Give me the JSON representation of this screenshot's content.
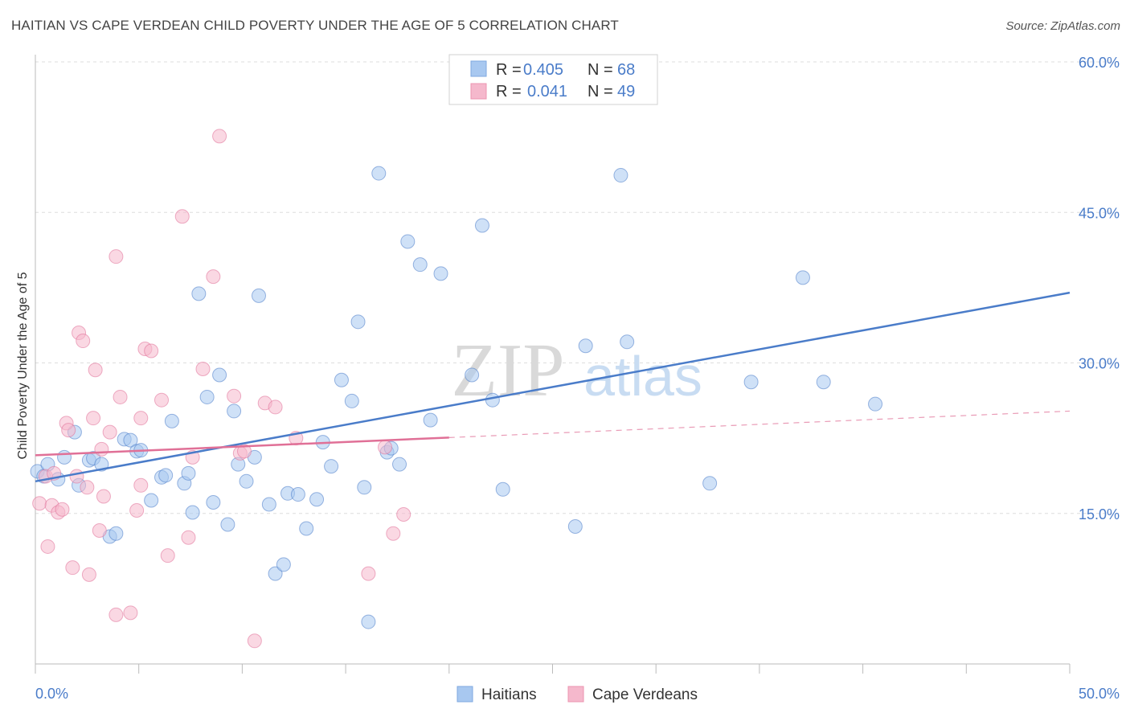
{
  "title": "HAITIAN VS CAPE VERDEAN CHILD POVERTY UNDER THE AGE OF 5 CORRELATION CHART",
  "source": "Source: ZipAtlas.com",
  "watermark": {
    "zip": "ZIP",
    "atlas": "atlas"
  },
  "legend": {
    "rows": [
      {
        "r_label": "R = ",
        "r_value": "0.405",
        "n_label": "N = ",
        "n_value": "68",
        "color": "#a8c8f0"
      },
      {
        "r_label": "R = ",
        "r_value": "0.041",
        "n_label": "N = ",
        "n_value": "49",
        "color": "#f5b8cc"
      }
    ]
  },
  "bottom_legend": [
    {
      "label": "Haitians",
      "color": "#a8c8f0"
    },
    {
      "label": "Cape Verdeans",
      "color": "#f5b8cc"
    }
  ],
  "chart_data": {
    "type": "scatter",
    "title": "HAITIAN VS CAPE VERDEAN CHILD POVERTY UNDER THE AGE OF 5 CORRELATION CHART",
    "xlabel": "",
    "ylabel": "Child Poverty Under the Age of 5",
    "xlim": [
      0,
      50
    ],
    "ylim": [
      0,
      60
    ],
    "x_tick_labels": [
      {
        "value": 0,
        "label": "0.0%"
      },
      {
        "value": 50,
        "label": "50.0%"
      }
    ],
    "y_tick_labels": [
      {
        "value": 15,
        "label": "15.0%"
      },
      {
        "value": 30,
        "label": "30.0%"
      },
      {
        "value": 45,
        "label": "45.0%"
      },
      {
        "value": 60,
        "label": "60.0%"
      }
    ],
    "grid": true,
    "legend_position": "top-center",
    "series": [
      {
        "name": "Haitians",
        "color": "#4a7cc9",
        "fill": "#a8c8f0",
        "trend": {
          "x": [
            0,
            50
          ],
          "y": [
            18.2,
            37.0
          ],
          "style": "solid"
        },
        "points": [
          [
            0.1,
            19.2
          ],
          [
            0.4,
            18.7
          ],
          [
            0.6,
            19.9
          ],
          [
            1.1,
            18.4
          ],
          [
            1.4,
            20.6
          ],
          [
            1.9,
            23.1
          ],
          [
            2.1,
            17.8
          ],
          [
            2.6,
            20.3
          ],
          [
            2.8,
            20.5
          ],
          [
            3.2,
            19.9
          ],
          [
            3.6,
            12.7
          ],
          [
            3.9,
            13.0
          ],
          [
            4.3,
            22.4
          ],
          [
            4.6,
            22.3
          ],
          [
            4.9,
            21.2
          ],
          [
            5.1,
            21.3
          ],
          [
            5.6,
            16.3
          ],
          [
            6.1,
            18.6
          ],
          [
            6.3,
            18.8
          ],
          [
            6.6,
            24.2
          ],
          [
            7.2,
            18.0
          ],
          [
            7.4,
            19.0
          ],
          [
            7.6,
            15.1
          ],
          [
            7.9,
            36.9
          ],
          [
            8.3,
            26.6
          ],
          [
            8.6,
            16.1
          ],
          [
            8.9,
            28.8
          ],
          [
            9.3,
            13.9
          ],
          [
            9.6,
            25.2
          ],
          [
            9.8,
            19.9
          ],
          [
            10.2,
            18.2
          ],
          [
            10.6,
            20.6
          ],
          [
            10.8,
            36.7
          ],
          [
            11.3,
            15.9
          ],
          [
            11.6,
            9.0
          ],
          [
            12.0,
            9.9
          ],
          [
            12.2,
            17.0
          ],
          [
            12.7,
            16.9
          ],
          [
            13.1,
            13.5
          ],
          [
            13.6,
            16.4
          ],
          [
            13.9,
            22.1
          ],
          [
            14.3,
            19.7
          ],
          [
            14.8,
            28.3
          ],
          [
            15.3,
            26.2
          ],
          [
            15.6,
            34.1
          ],
          [
            15.9,
            17.6
          ],
          [
            16.1,
            4.2
          ],
          [
            16.6,
            48.9
          ],
          [
            17.0,
            21.1
          ],
          [
            17.2,
            21.5
          ],
          [
            17.6,
            19.9
          ],
          [
            18.0,
            42.1
          ],
          [
            18.6,
            39.8
          ],
          [
            19.1,
            24.3
          ],
          [
            19.6,
            38.9
          ],
          [
            21.1,
            28.8
          ],
          [
            21.6,
            43.7
          ],
          [
            22.1,
            26.3
          ],
          [
            22.6,
            17.4
          ],
          [
            26.1,
            13.7
          ],
          [
            26.6,
            31.7
          ],
          [
            28.3,
            48.7
          ],
          [
            28.6,
            32.1
          ],
          [
            32.6,
            18.0
          ],
          [
            34.6,
            28.1
          ],
          [
            37.1,
            38.5
          ],
          [
            38.1,
            28.1
          ],
          [
            40.6,
            25.9
          ]
        ]
      },
      {
        "name": "Cape Verdeans",
        "color": "#e07097",
        "fill": "#f5b8cc",
        "trend": {
          "x": [
            0,
            50
          ],
          "y": [
            20.8,
            25.2
          ],
          "solid_until": 20,
          "style": "solid-then-dashed"
        },
        "points": [
          [
            0.2,
            16.0
          ],
          [
            0.5,
            18.7
          ],
          [
            0.6,
            11.7
          ],
          [
            0.8,
            15.8
          ],
          [
            0.9,
            19.0
          ],
          [
            1.1,
            15.1
          ],
          [
            1.3,
            15.4
          ],
          [
            1.5,
            24.0
          ],
          [
            1.6,
            23.3
          ],
          [
            1.8,
            9.6
          ],
          [
            2.0,
            18.7
          ],
          [
            2.1,
            33.0
          ],
          [
            2.3,
            32.2
          ],
          [
            2.5,
            17.6
          ],
          [
            2.6,
            8.9
          ],
          [
            2.8,
            24.5
          ],
          [
            2.9,
            29.3
          ],
          [
            3.1,
            13.3
          ],
          [
            3.2,
            21.4
          ],
          [
            3.3,
            16.7
          ],
          [
            3.6,
            23.1
          ],
          [
            3.9,
            40.6
          ],
          [
            3.9,
            4.9
          ],
          [
            4.1,
            26.6
          ],
          [
            4.6,
            5.1
          ],
          [
            4.9,
            15.3
          ],
          [
            5.1,
            17.8
          ],
          [
            5.1,
            24.5
          ],
          [
            5.3,
            31.4
          ],
          [
            5.6,
            31.2
          ],
          [
            6.1,
            26.3
          ],
          [
            6.4,
            10.8
          ],
          [
            7.1,
            44.6
          ],
          [
            7.4,
            12.6
          ],
          [
            7.6,
            20.6
          ],
          [
            8.1,
            29.4
          ],
          [
            8.6,
            38.6
          ],
          [
            8.9,
            52.6
          ],
          [
            9.6,
            26.7
          ],
          [
            9.9,
            21.0
          ],
          [
            10.1,
            21.2
          ],
          [
            10.6,
            2.3
          ],
          [
            11.1,
            26.0
          ],
          [
            11.6,
            25.6
          ],
          [
            12.6,
            22.5
          ],
          [
            16.1,
            9.0
          ],
          [
            16.9,
            21.6
          ],
          [
            17.3,
            13.0
          ],
          [
            17.8,
            14.9
          ]
        ]
      }
    ]
  }
}
